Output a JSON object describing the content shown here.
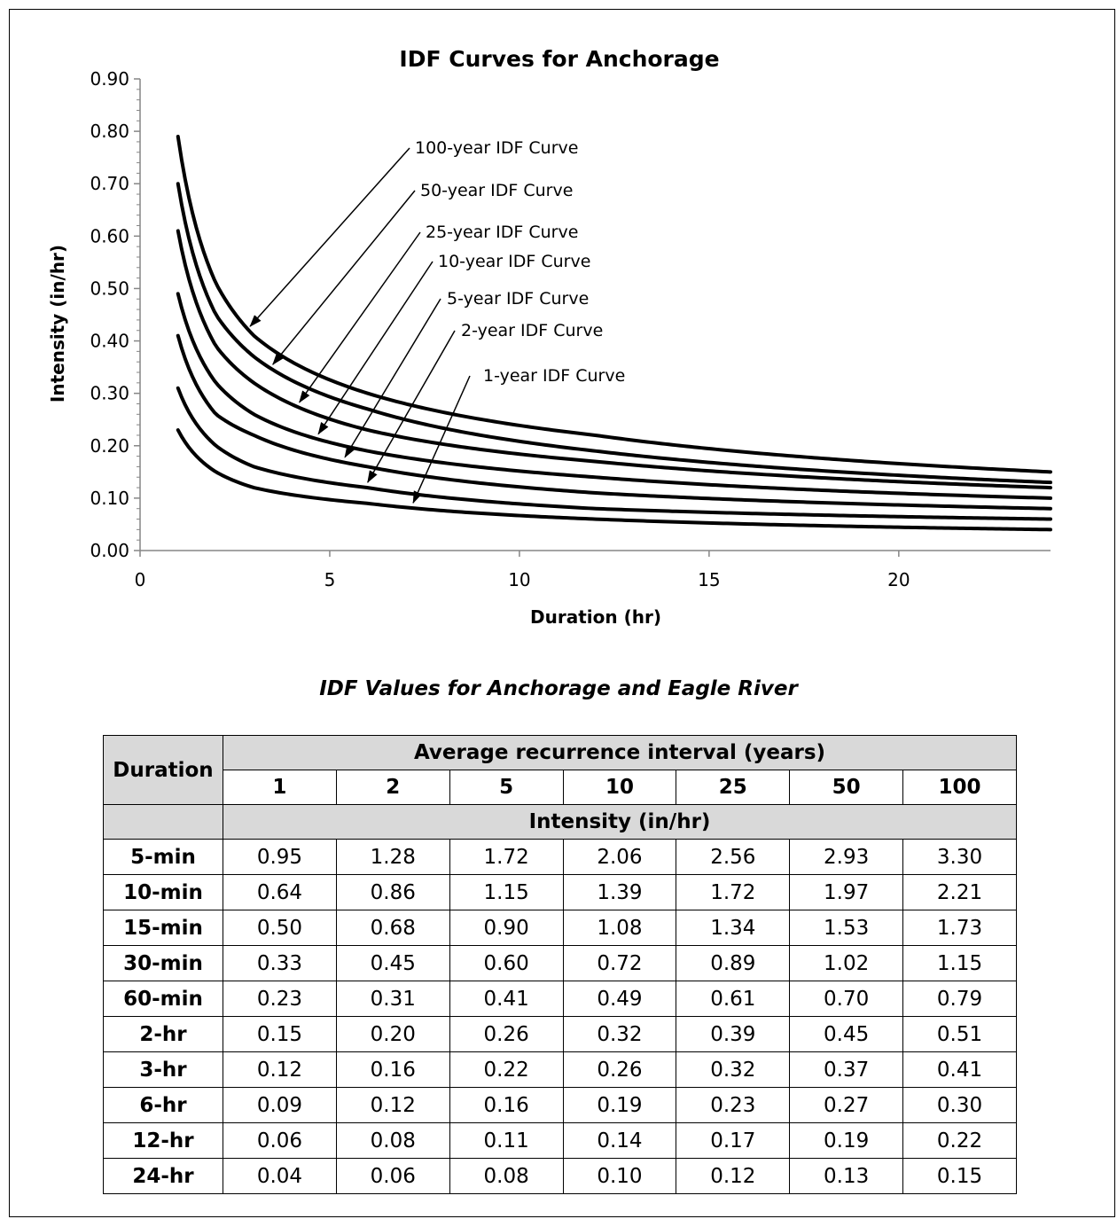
{
  "chart_data": {
    "type": "line",
    "title": "IDF Curves for Anchorage",
    "xlabel": "Duration (hr)",
    "ylabel": "Intensity (in/hr)",
    "xlim": [
      0,
      24
    ],
    "ylim": [
      0,
      0.9
    ],
    "xticks": [
      "0",
      "5",
      "10",
      "15",
      "20"
    ],
    "yticks": [
      "0.00",
      "0.10",
      "0.20",
      "0.30",
      "0.40",
      "0.50",
      "0.60",
      "0.70",
      "0.80",
      "0.90"
    ],
    "x": [
      1,
      2,
      3,
      6,
      12,
      24
    ],
    "series": [
      {
        "name": "1-year IDF Curve",
        "values": [
          0.23,
          0.15,
          0.12,
          0.09,
          0.06,
          0.04
        ]
      },
      {
        "name": "2-year IDF Curve",
        "values": [
          0.31,
          0.2,
          0.16,
          0.12,
          0.08,
          0.06
        ]
      },
      {
        "name": "5-year IDF Curve",
        "values": [
          0.41,
          0.26,
          0.22,
          0.16,
          0.11,
          0.08
        ]
      },
      {
        "name": "10-year IDF Curve",
        "values": [
          0.49,
          0.32,
          0.26,
          0.19,
          0.14,
          0.1
        ]
      },
      {
        "name": "25-year IDF Curve",
        "values": [
          0.61,
          0.39,
          0.32,
          0.23,
          0.17,
          0.12
        ]
      },
      {
        "name": "50-year IDF Curve",
        "values": [
          0.7,
          0.45,
          0.37,
          0.27,
          0.19,
          0.13
        ]
      },
      {
        "name": "100-year IDF Curve",
        "values": [
          0.79,
          0.51,
          0.41,
          0.3,
          0.22,
          0.15
        ]
      }
    ],
    "annotations": [
      {
        "series": "100-year IDF Curve",
        "text": "100-year IDF Curve",
        "arrow_x": 2.9
      },
      {
        "series": "50-year IDF Curve",
        "text": "50-year IDF Curve",
        "arrow_x": 3.5
      },
      {
        "series": "25-year IDF Curve",
        "text": "25-year IDF Curve",
        "arrow_x": 4.2
      },
      {
        "series": "10-year IDF Curve",
        "text": "10-year IDF Curve",
        "arrow_x": 4.7
      },
      {
        "series": "5-year IDF Curve",
        "text": "5-year IDF Curve",
        "arrow_x": 5.4
      },
      {
        "series": "2-year IDF Curve",
        "text": "2-year IDF Curve",
        "arrow_x": 6.0
      },
      {
        "series": "1-year IDF Curve",
        "text": "1-year IDF Curve",
        "arrow_x": 7.2
      }
    ],
    "grid": false,
    "legend": "none"
  },
  "table": {
    "title": "IDF Values for Anchorage and Eagle River",
    "duration_header": "Duration",
    "ari_header": "Average recurrence interval (years)",
    "ari_columns": [
      "1",
      "2",
      "5",
      "10",
      "25",
      "50",
      "100"
    ],
    "intensity_header": "Intensity (in/hr)",
    "rows": [
      {
        "label": "5-min",
        "values": [
          "0.95",
          "1.28",
          "1.72",
          "2.06",
          "2.56",
          "2.93",
          "3.30"
        ]
      },
      {
        "label": "10-min",
        "values": [
          "0.64",
          "0.86",
          "1.15",
          "1.39",
          "1.72",
          "1.97",
          "2.21"
        ]
      },
      {
        "label": "15-min",
        "values": [
          "0.50",
          "0.68",
          "0.90",
          "1.08",
          "1.34",
          "1.53",
          "1.73"
        ]
      },
      {
        "label": "30-min",
        "values": [
          "0.33",
          "0.45",
          "0.60",
          "0.72",
          "0.89",
          "1.02",
          "1.15"
        ]
      },
      {
        "label": "60-min",
        "values": [
          "0.23",
          "0.31",
          "0.41",
          "0.49",
          "0.61",
          "0.70",
          "0.79"
        ]
      },
      {
        "label": "2-hr",
        "values": [
          "0.15",
          "0.20",
          "0.26",
          "0.32",
          "0.39",
          "0.45",
          "0.51"
        ]
      },
      {
        "label": "3-hr",
        "values": [
          "0.12",
          "0.16",
          "0.22",
          "0.26",
          "0.32",
          "0.37",
          "0.41"
        ]
      },
      {
        "label": "6-hr",
        "values": [
          "0.09",
          "0.12",
          "0.16",
          "0.19",
          "0.23",
          "0.27",
          "0.30"
        ]
      },
      {
        "label": "12-hr",
        "values": [
          "0.06",
          "0.08",
          "0.11",
          "0.14",
          "0.17",
          "0.19",
          "0.22"
        ]
      },
      {
        "label": "24-hr",
        "values": [
          "0.04",
          "0.06",
          "0.08",
          "0.10",
          "0.12",
          "0.13",
          "0.15"
        ]
      }
    ]
  }
}
